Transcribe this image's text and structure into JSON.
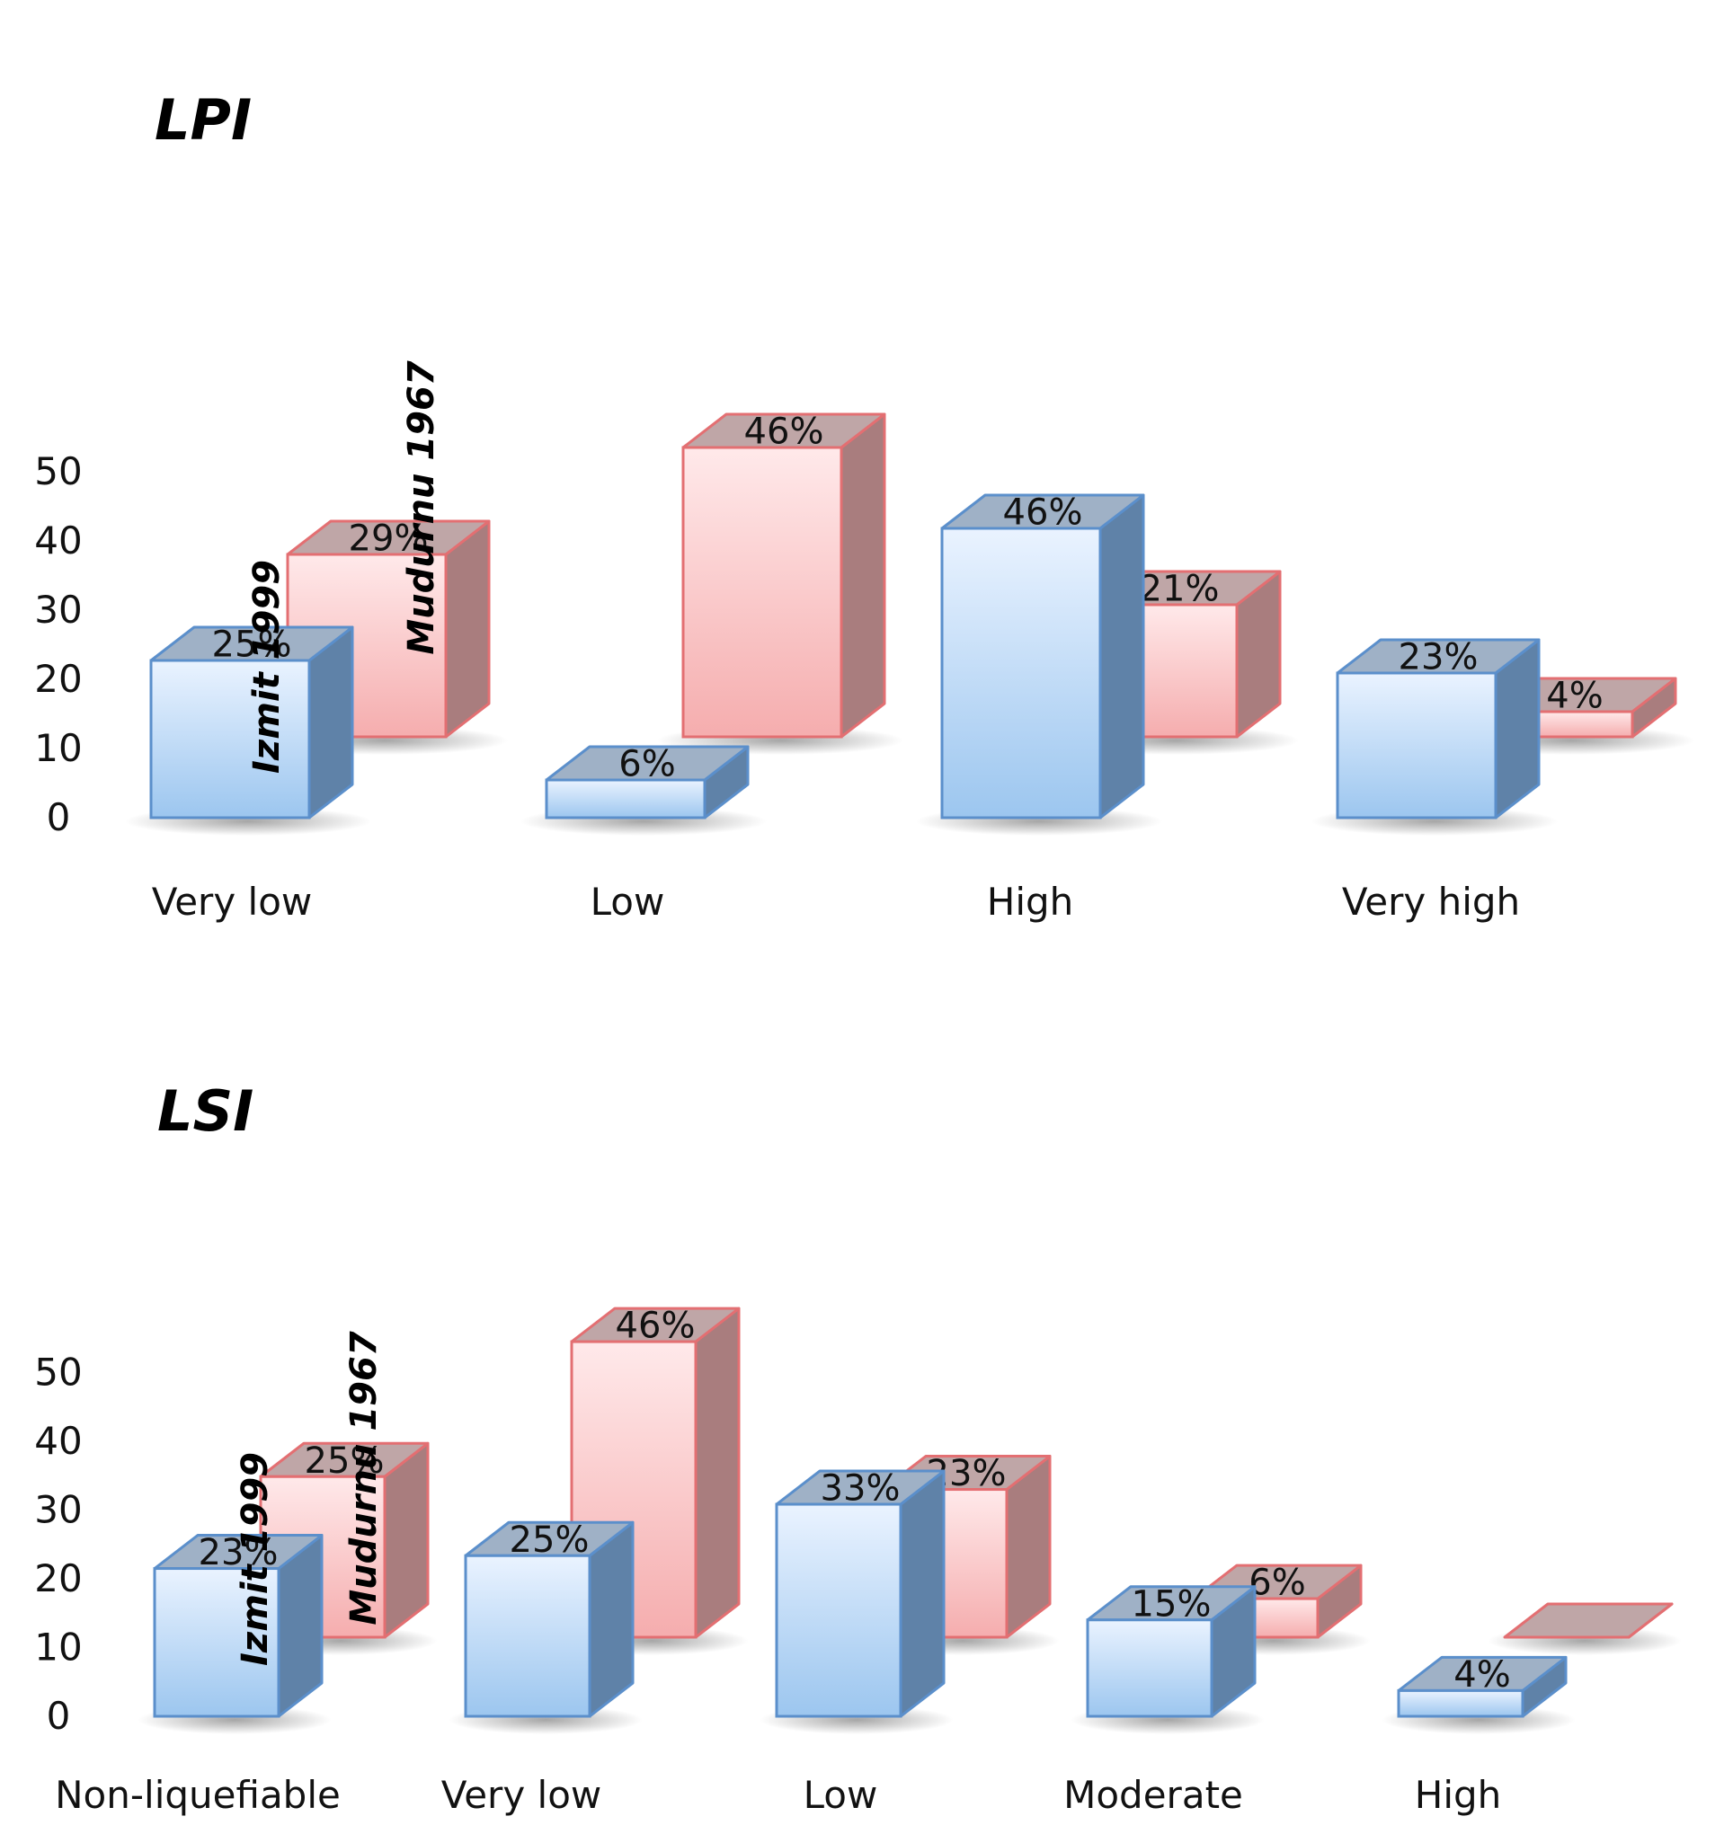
{
  "colors": {
    "izmit_front_top": "#eaf3ff",
    "izmit_front_bottom": "#9cc6ef",
    "izmit_side": "#5f82a8",
    "izmit_top": "#9fb1c6",
    "izmit_stroke": "#5b8fcb",
    "mudurnu_front_top": "#ffe9ea",
    "mudurnu_front_bottom": "#f5adae",
    "mudurnu_side": "#a97d7e",
    "mudurnu_top": "#bfa6a7",
    "mudurnu_stroke": "#e36f72"
  },
  "chart_data": [
    {
      "type": "bar",
      "title": "LPI",
      "categories": [
        "Very low",
        "Low",
        "High",
        "Very high"
      ],
      "ylim": [
        0,
        50
      ],
      "yticks": [
        "0",
        "10",
        "20",
        "30",
        "40",
        "50"
      ],
      "series": [
        {
          "name": "Izmit 1999",
          "values": [
            25,
            6,
            46,
            23
          ],
          "labels": [
            "25%",
            "6%",
            "46%",
            "23%"
          ]
        },
        {
          "name": "Mudurnu 1967",
          "values": [
            29,
            46,
            21,
            4
          ],
          "labels": [
            "29%",
            "46%",
            "21%",
            "4%"
          ]
        }
      ]
    },
    {
      "type": "bar",
      "title": "LSI",
      "categories": [
        "Non-liquefiable",
        "Very low",
        "Low",
        "Moderate",
        "High"
      ],
      "ylim": [
        0,
        50
      ],
      "yticks": [
        "0",
        "10",
        "20",
        "30",
        "40",
        "50"
      ],
      "series": [
        {
          "name": "Izmit 1999",
          "values": [
            23,
            25,
            33,
            15,
            4
          ],
          "labels": [
            "23%",
            "25%",
            "33%",
            "15%",
            "4%"
          ]
        },
        {
          "name": "Mudurnu 1967",
          "values": [
            25,
            46,
            23,
            6,
            0
          ],
          "labels": [
            "25%",
            "46%",
            "23%",
            "6%",
            ""
          ]
        }
      ]
    }
  ]
}
